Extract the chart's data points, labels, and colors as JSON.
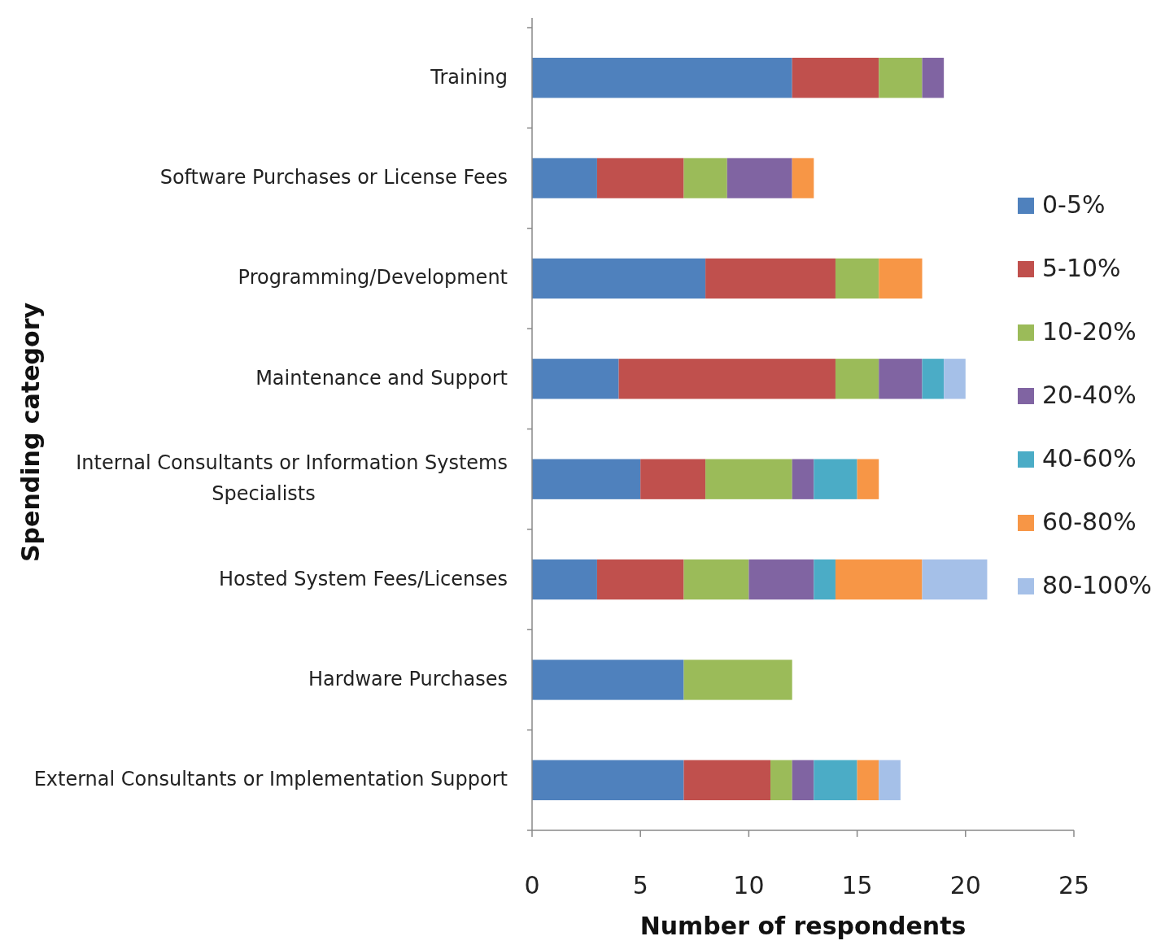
{
  "chart_data": {
    "type": "bar",
    "orientation": "horizontal",
    "stacked": true,
    "xlabel": "Number of respondents",
    "ylabel": "Spending category",
    "categories": [
      "Training",
      "Software Purchases or License Fees",
      "Programming/Development",
      "Maintenance and Support",
      "Internal Consultants or Information Systems Specialists",
      "Hosted System Fees/Licenses",
      "Hardware Purchases",
      "External Consultants or Implementation Support"
    ],
    "series": [
      {
        "name": "0-5%",
        "color": "#4f81bd",
        "values": [
          12,
          3,
          8,
          4,
          5,
          3,
          7,
          7
        ]
      },
      {
        "name": "5-10%",
        "color": "#c0504d",
        "values": [
          4,
          4,
          6,
          10,
          3,
          4,
          0,
          4
        ]
      },
      {
        "name": "10-20%",
        "color": "#9bbb59",
        "values": [
          2,
          2,
          2,
          2,
          4,
          3,
          5,
          1
        ]
      },
      {
        "name": "20-40%",
        "color": "#8064a2",
        "values": [
          1,
          3,
          0,
          2,
          1,
          3,
          0,
          1
        ]
      },
      {
        "name": "40-60%",
        "color": "#4bacc6",
        "values": [
          0,
          0,
          0,
          1,
          2,
          1,
          0,
          2
        ]
      },
      {
        "name": "60-80%",
        "color": "#f79646",
        "values": [
          0,
          1,
          2,
          0,
          1,
          4,
          0,
          1
        ]
      },
      {
        "name": "80-100%",
        "color": "#a5c0e8",
        "values": [
          0,
          0,
          0,
          1,
          0,
          3,
          0,
          1
        ]
      }
    ],
    "xlim": [
      0,
      25
    ],
    "xticks": [
      0,
      5,
      10,
      15,
      20,
      25
    ],
    "grid": false,
    "legend": "right"
  }
}
